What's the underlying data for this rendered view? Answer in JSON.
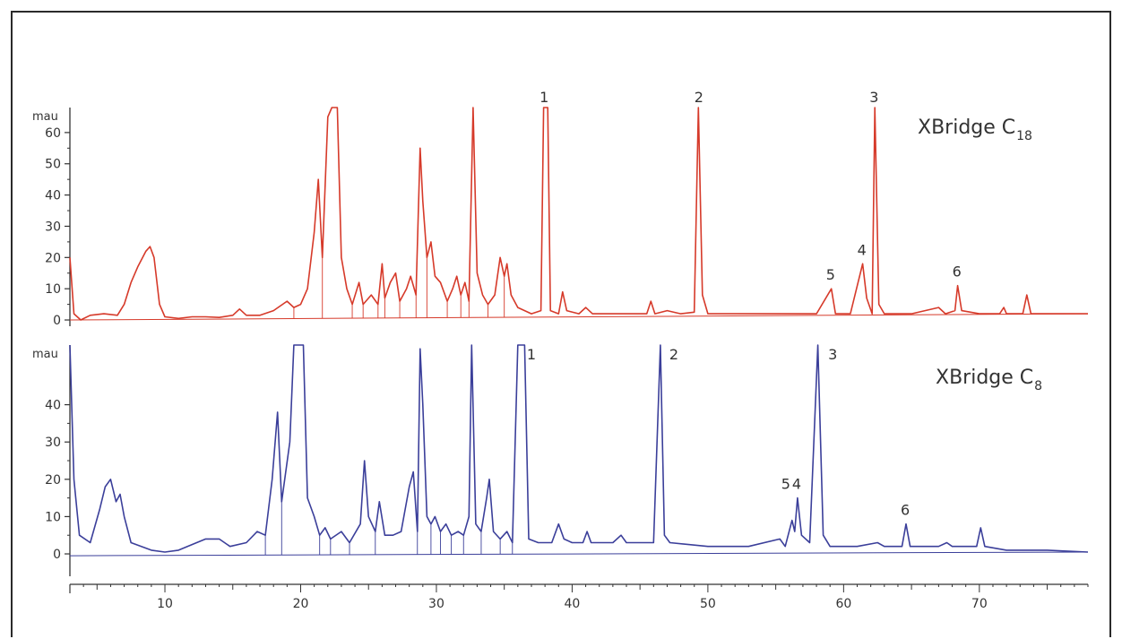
{
  "chart_data": [
    {
      "type": "line",
      "title": "XBridge C",
      "title_subscript": "18",
      "ylabel": "mau",
      "ylim": [
        -2,
        68
      ],
      "yticks": [
        0,
        10,
        20,
        30,
        40,
        50,
        60
      ],
      "xlim": [
        3,
        78
      ],
      "color": "#d63a2a",
      "peak_labels": [
        {
          "label": "1",
          "x": 38.0
        },
        {
          "label": "2",
          "x": 49.4
        },
        {
          "label": "3",
          "x": 62.3
        },
        {
          "label": "4",
          "x": 61.4
        },
        {
          "label": "5",
          "x": 59.1
        },
        {
          "label": "6",
          "x": 68.4
        }
      ],
      "baseline": [
        [
          3,
          0.0
        ],
        [
          78,
          2.0
        ]
      ],
      "trace": [
        [
          3,
          20
        ],
        [
          3.3,
          2
        ],
        [
          3.8,
          0
        ],
        [
          4.5,
          1.5
        ],
        [
          5.5,
          2
        ],
        [
          6.5,
          1.5
        ],
        [
          7,
          5
        ],
        [
          7.5,
          12
        ],
        [
          8,
          17
        ],
        [
          8.6,
          22
        ],
        [
          8.9,
          23.5
        ],
        [
          9.2,
          20
        ],
        [
          9.6,
          5
        ],
        [
          10,
          1
        ],
        [
          11,
          0.5
        ],
        [
          12,
          1
        ],
        [
          13,
          1
        ],
        [
          14,
          0.8
        ],
        [
          15,
          1.5
        ],
        [
          15.5,
          3.5
        ],
        [
          16,
          1.5
        ],
        [
          17,
          1.5
        ],
        [
          18,
          3
        ],
        [
          19,
          6
        ],
        [
          19.5,
          4
        ],
        [
          20,
          5
        ],
        [
          20.5,
          10
        ],
        [
          21,
          28
        ],
        [
          21.3,
          45
        ],
        [
          21.6,
          20
        ],
        [
          22,
          65
        ],
        [
          22.3,
          68
        ],
        [
          22.7,
          68
        ],
        [
          23,
          20
        ],
        [
          23.4,
          10
        ],
        [
          23.8,
          5
        ],
        [
          24.3,
          12
        ],
        [
          24.6,
          5
        ],
        [
          25.2,
          8
        ],
        [
          25.7,
          5
        ],
        [
          26,
          18
        ],
        [
          26.2,
          7
        ],
        [
          26.6,
          12
        ],
        [
          27,
          15
        ],
        [
          27.3,
          6
        ],
        [
          27.8,
          10
        ],
        [
          28.1,
          14
        ],
        [
          28.5,
          8
        ],
        [
          28.8,
          55
        ],
        [
          29,
          38
        ],
        [
          29.3,
          20
        ],
        [
          29.6,
          25
        ],
        [
          29.9,
          14
        ],
        [
          30.3,
          12
        ],
        [
          30.8,
          6
        ],
        [
          31.2,
          10
        ],
        [
          31.5,
          14
        ],
        [
          31.8,
          8
        ],
        [
          32.1,
          12
        ],
        [
          32.4,
          6
        ],
        [
          32.7,
          68
        ],
        [
          33,
          15
        ],
        [
          33.4,
          8
        ],
        [
          33.8,
          5
        ],
        [
          34.3,
          8
        ],
        [
          34.7,
          20
        ],
        [
          35,
          14
        ],
        [
          35.2,
          18
        ],
        [
          35.5,
          8
        ],
        [
          36,
          4
        ],
        [
          37,
          2
        ],
        [
          37.7,
          3
        ],
        [
          37.9,
          68
        ],
        [
          38.2,
          68
        ],
        [
          38.4,
          3
        ],
        [
          39,
          2
        ],
        [
          39.3,
          9
        ],
        [
          39.6,
          3
        ],
        [
          40.5,
          2
        ],
        [
          41,
          4
        ],
        [
          41.5,
          2
        ],
        [
          43,
          2
        ],
        [
          45.5,
          2
        ],
        [
          45.8,
          6
        ],
        [
          46.1,
          2
        ],
        [
          47,
          3
        ],
        [
          48,
          2
        ],
        [
          49,
          2.5
        ],
        [
          49.3,
          68
        ],
        [
          49.6,
          8
        ],
        [
          50,
          2
        ],
        [
          52,
          2
        ],
        [
          55,
          2
        ],
        [
          58,
          2
        ],
        [
          59.1,
          10
        ],
        [
          59.4,
          2
        ],
        [
          60.5,
          2
        ],
        [
          61.4,
          18
        ],
        [
          61.7,
          7
        ],
        [
          62.1,
          2
        ],
        [
          62.3,
          68
        ],
        [
          62.6,
          5
        ],
        [
          63,
          2
        ],
        [
          64,
          2
        ],
        [
          65,
          2
        ],
        [
          67,
          4
        ],
        [
          67.5,
          2
        ],
        [
          68.2,
          3
        ],
        [
          68.4,
          11
        ],
        [
          68.7,
          3
        ],
        [
          70,
          2
        ],
        [
          71.5,
          2
        ],
        [
          71.8,
          4
        ],
        [
          72,
          2
        ],
        [
          73.2,
          2
        ],
        [
          73.5,
          8
        ],
        [
          73.8,
          2
        ],
        [
          76,
          2
        ],
        [
          78,
          2
        ]
      ]
    },
    {
      "type": "line",
      "title": "XBridge C",
      "title_subscript": "8",
      "ylabel": "mau",
      "ylim": [
        -6,
        56
      ],
      "yticks": [
        0,
        10,
        20,
        30,
        40
      ],
      "xlim": [
        3,
        78
      ],
      "xticks": [
        10,
        20,
        30,
        40,
        50,
        60,
        70
      ],
      "color": "#3b3f9a",
      "peak_labels": [
        {
          "label": "1",
          "x": 36.0
        },
        {
          "label": "2",
          "x": 46.5
        },
        {
          "label": "3",
          "x": 58.2
        },
        {
          "label": "4",
          "x": 56.6
        },
        {
          "label": "5",
          "x": 56.2
        },
        {
          "label": "6",
          "x": 64.6
        }
      ],
      "baseline": [
        [
          3,
          -0.5
        ],
        [
          78,
          0.5
        ]
      ],
      "trace": [
        [
          3,
          56
        ],
        [
          3.3,
          20
        ],
        [
          3.7,
          5
        ],
        [
          4.5,
          3
        ],
        [
          5.2,
          12
        ],
        [
          5.6,
          18
        ],
        [
          6,
          20
        ],
        [
          6.4,
          14
        ],
        [
          6.7,
          16
        ],
        [
          7,
          10
        ],
        [
          7.5,
          3
        ],
        [
          9,
          1
        ],
        [
          10,
          0.5
        ],
        [
          11,
          1
        ],
        [
          12,
          2.5
        ],
        [
          13,
          4
        ],
        [
          14,
          4
        ],
        [
          14.8,
          2
        ],
        [
          16,
          3
        ],
        [
          16.8,
          6
        ],
        [
          17.4,
          5
        ],
        [
          17.9,
          20
        ],
        [
          18.3,
          38
        ],
        [
          18.6,
          14
        ],
        [
          19.2,
          30
        ],
        [
          19.5,
          56
        ],
        [
          20.2,
          56
        ],
        [
          20.5,
          15
        ],
        [
          21,
          10
        ],
        [
          21.4,
          5
        ],
        [
          21.8,
          7
        ],
        [
          22.2,
          4
        ],
        [
          23,
          6
        ],
        [
          23.6,
          3
        ],
        [
          24.4,
          8
        ],
        [
          24.7,
          25
        ],
        [
          25,
          10
        ],
        [
          25.5,
          6
        ],
        [
          25.8,
          14
        ],
        [
          26.2,
          5
        ],
        [
          26.8,
          5
        ],
        [
          27.4,
          6
        ],
        [
          28,
          18
        ],
        [
          28.3,
          22
        ],
        [
          28.6,
          6
        ],
        [
          28.8,
          55
        ],
        [
          29,
          40
        ],
        [
          29.3,
          10
        ],
        [
          29.6,
          8
        ],
        [
          29.9,
          10
        ],
        [
          30.3,
          6
        ],
        [
          30.7,
          8
        ],
        [
          31.1,
          5
        ],
        [
          31.6,
          6
        ],
        [
          32,
          5
        ],
        [
          32.4,
          10
        ],
        [
          32.6,
          56
        ],
        [
          32.9,
          8
        ],
        [
          33.3,
          6
        ],
        [
          33.7,
          15
        ],
        [
          33.9,
          20
        ],
        [
          34.2,
          6
        ],
        [
          34.7,
          4
        ],
        [
          35.2,
          6
        ],
        [
          35.6,
          3
        ],
        [
          36,
          56
        ],
        [
          36.5,
          56
        ],
        [
          36.8,
          4
        ],
        [
          37.5,
          3
        ],
        [
          38.5,
          3
        ],
        [
          39,
          8
        ],
        [
          39.4,
          4
        ],
        [
          40,
          3
        ],
        [
          40.8,
          3
        ],
        [
          41.1,
          6
        ],
        [
          41.4,
          3
        ],
        [
          43,
          3
        ],
        [
          43.6,
          5
        ],
        [
          44,
          3
        ],
        [
          45,
          3
        ],
        [
          46,
          3
        ],
        [
          46.5,
          56
        ],
        [
          46.8,
          5
        ],
        [
          47.2,
          3
        ],
        [
          50,
          2
        ],
        [
          53,
          2
        ],
        [
          55.3,
          4
        ],
        [
          55.7,
          2
        ],
        [
          56.2,
          9
        ],
        [
          56.4,
          6
        ],
        [
          56.6,
          15
        ],
        [
          56.9,
          5
        ],
        [
          57.5,
          3
        ],
        [
          58.1,
          56
        ],
        [
          58.5,
          5
        ],
        [
          59,
          2
        ],
        [
          61,
          2
        ],
        [
          62.5,
          3
        ],
        [
          63,
          2
        ],
        [
          64.3,
          2
        ],
        [
          64.6,
          8
        ],
        [
          64.9,
          2
        ],
        [
          67,
          2
        ],
        [
          67.6,
          3
        ],
        [
          68,
          2
        ],
        [
          69.8,
          2
        ],
        [
          70.1,
          7
        ],
        [
          70.4,
          2
        ],
        [
          72,
          1
        ],
        [
          75,
          1
        ],
        [
          78,
          0.5
        ]
      ]
    }
  ]
}
